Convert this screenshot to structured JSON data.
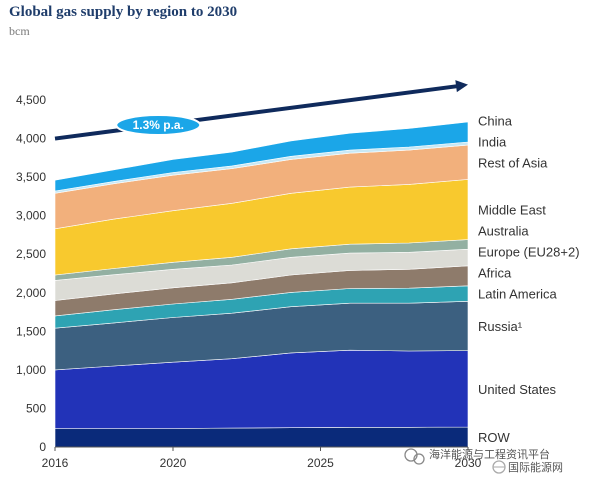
{
  "title": "Global gas supply by region to 2030",
  "subtitle": "bcm",
  "growth_label": "1.3% p.a.",
  "watermark": {
    "text1": "海洋能源与工程资讯平台",
    "text2": "国际能源网"
  },
  "chart_data": {
    "type": "area",
    "stacked": true,
    "title": "Global gas supply by region to 2030",
    "ylabel": "bcm",
    "xlabel": "",
    "x": [
      2016,
      2018,
      2020,
      2022,
      2024,
      2026,
      2028,
      2030
    ],
    "xticks": [
      2016,
      2020,
      2025,
      2030
    ],
    "ylim": [
      0,
      4500
    ],
    "yticks": [
      0,
      500,
      1000,
      1500,
      2000,
      2500,
      3000,
      3500,
      4000,
      4500
    ],
    "ytick_labels": [
      "0",
      "500",
      "1,000",
      "1,500",
      "2,000",
      "2,500",
      "3,000",
      "3,500",
      "4,000",
      "4,500"
    ],
    "legend_position": "right",
    "series": [
      {
        "name": "ROW",
        "color": "#0a2a7a",
        "values": [
          240,
          240,
          240,
          245,
          250,
          255,
          255,
          260
        ]
      },
      {
        "name": "United States",
        "color": "#2233b8",
        "values": [
          760,
          810,
          860,
          900,
          970,
          1000,
          990,
          990
        ]
      },
      {
        "name": "Russia¹",
        "color": "#3c6080",
        "values": [
          540,
          560,
          580,
          590,
          600,
          610,
          620,
          640
        ]
      },
      {
        "name": "Latin America",
        "color": "#2ea3b3",
        "values": [
          160,
          170,
          175,
          180,
          185,
          190,
          195,
          200
        ]
      },
      {
        "name": "Africa",
        "color": "#8e7b6b",
        "values": [
          200,
          205,
          210,
          215,
          225,
          235,
          245,
          260
        ]
      },
      {
        "name": "Europe (EU28+2)",
        "color": "#dcdcd6",
        "values": [
          260,
          250,
          240,
          230,
          230,
          225,
          220,
          215
        ]
      },
      {
        "name": "Australia",
        "color": "#93b0a2",
        "values": [
          70,
          80,
          90,
          100,
          110,
          115,
          120,
          125
        ]
      },
      {
        "name": "Middle East",
        "color": "#f8c92e",
        "values": [
          600,
          640,
          670,
          700,
          720,
          740,
          760,
          780
        ]
      },
      {
        "name": "Rest of Asia",
        "color": "#f2b07c",
        "values": [
          460,
          460,
          460,
          450,
          440,
          440,
          445,
          445
        ]
      },
      {
        "name": "India",
        "color": "#c8e8f5",
        "values": [
          30,
          30,
          35,
          35,
          40,
          40,
          40,
          40
        ]
      },
      {
        "name": "China",
        "color": "#1ba6e8",
        "values": [
          140,
          150,
          170,
          180,
          200,
          220,
          240,
          260
        ]
      }
    ],
    "trend": {
      "label": "1.3% p.a.",
      "x": [
        2016,
        2030
      ],
      "y": [
        4000,
        4700
      ]
    }
  }
}
